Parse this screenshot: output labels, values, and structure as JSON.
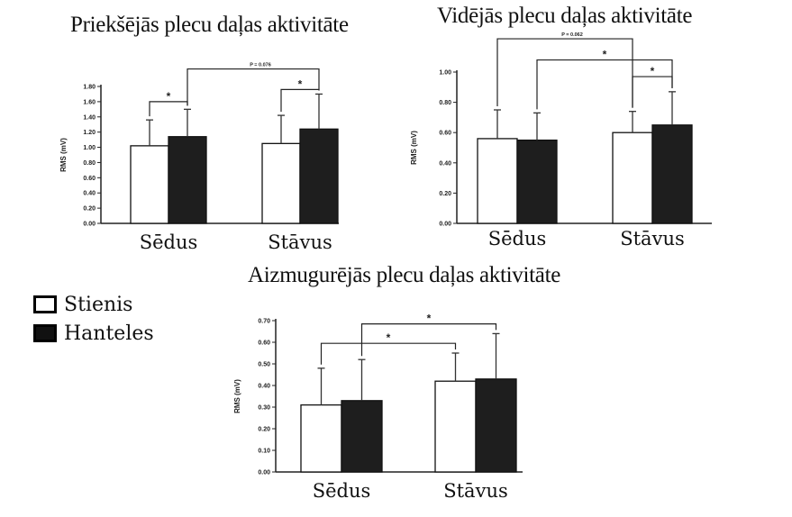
{
  "legend": {
    "items": [
      {
        "label": "Stienis",
        "color": "#ffffff"
      },
      {
        "label": "Hanteles",
        "color": "#1a1a1a"
      }
    ]
  },
  "chart_data": [
    {
      "type": "bar",
      "title": "Priekšējās plecu daļas aktivitāte",
      "ylabel": "RMS (mV)",
      "ylim": [
        0,
        1.8
      ],
      "yticks": [
        "0.00",
        "0.20",
        "0.40",
        "0.60",
        "0.80",
        "1.00",
        "1.20",
        "1.40",
        "1.60",
        "1.80"
      ],
      "categories": [
        "Sēdus",
        "Stāvus"
      ],
      "series": [
        {
          "name": "Stienis",
          "values": [
            1.02,
            1.05
          ],
          "errors": [
            0.34,
            0.37
          ]
        },
        {
          "name": "Hanteles",
          "values": [
            1.14,
            1.24
          ],
          "errors": [
            0.36,
            0.46
          ]
        }
      ],
      "annotations": [
        {
          "label": "*",
          "from": [
            0,
            0
          ],
          "to": [
            0,
            1
          ],
          "level": 1.6
        },
        {
          "label": "*",
          "from": [
            1,
            0
          ],
          "to": [
            1,
            1
          ],
          "level": 1.76
        },
        {
          "label": "P = 0.076",
          "from": [
            0,
            1
          ],
          "to": [
            1,
            1
          ],
          "level": 2.03
        }
      ]
    },
    {
      "type": "bar",
      "title": "Vidējās plecu daļas aktivitāte",
      "ylabel": "RMS (mV)",
      "ylim": [
        0,
        1.0
      ],
      "yticks": [
        "0.00",
        "0.20",
        "0.40",
        "0.60",
        "0.80",
        "1.00"
      ],
      "categories": [
        "Sēdus",
        "Stāvus"
      ],
      "series": [
        {
          "name": "Stienis",
          "values": [
            0.56,
            0.6
          ],
          "errors": [
            0.19,
            0.14
          ]
        },
        {
          "name": "Hanteles",
          "values": [
            0.55,
            0.65
          ],
          "errors": [
            0.18,
            0.22
          ]
        }
      ],
      "annotations": [
        {
          "label": "P = 0.062",
          "from": [
            0,
            0
          ],
          "to": [
            1,
            0
          ],
          "level": 1.22
        },
        {
          "label": "*",
          "from": [
            0,
            1
          ],
          "to": [
            1,
            1
          ],
          "level": 1.08
        },
        {
          "label": "*",
          "from": [
            1,
            0
          ],
          "to": [
            1,
            1
          ],
          "level": 0.97
        }
      ]
    },
    {
      "type": "bar",
      "title": "Aizmugurējās plecu daļas aktivitāte",
      "ylabel": "RMS (mV)",
      "ylim": [
        0,
        0.7
      ],
      "yticks": [
        "0.00",
        "0.10",
        "0.20",
        "0.30",
        "0.40",
        "0.50",
        "0.60",
        "0.70"
      ],
      "categories": [
        "Sēdus",
        "Stāvus"
      ],
      "series": [
        {
          "name": "Stienis",
          "values": [
            0.31,
            0.42
          ],
          "errors": [
            0.17,
            0.13
          ]
        },
        {
          "name": "Hanteles",
          "values": [
            0.33,
            0.43
          ],
          "errors": [
            0.19,
            0.21
          ]
        }
      ],
      "annotations": [
        {
          "label": "*",
          "from": [
            0,
            0
          ],
          "to": [
            1,
            0
          ],
          "level": 0.595
        },
        {
          "label": "*",
          "from": [
            0,
            1
          ],
          "to": [
            1,
            1
          ],
          "level": 0.685
        }
      ]
    }
  ]
}
